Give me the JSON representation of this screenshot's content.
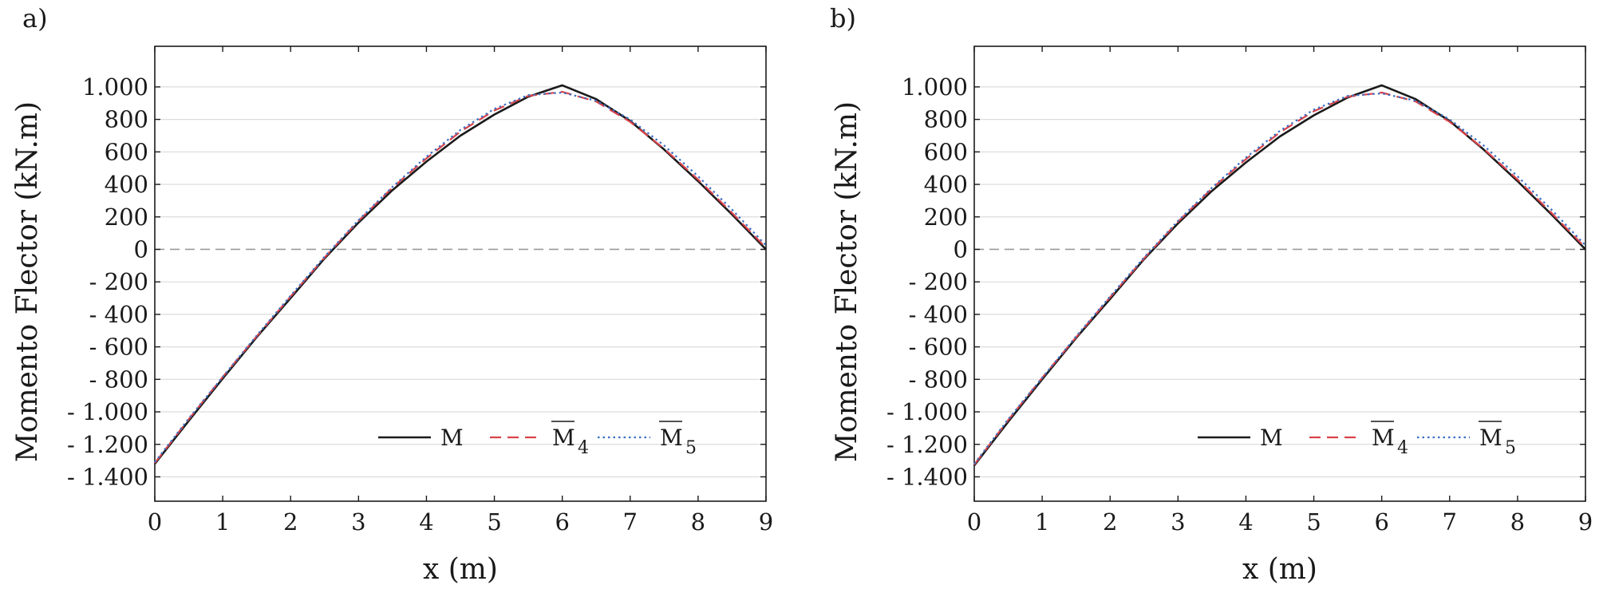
{
  "chart_data": [
    {
      "type": "line",
      "panel_label": "a)",
      "xlabel": "x (m)",
      "ylabel": "Momento Flector (kN.m)",
      "xlim": [
        0,
        9
      ],
      "ylim": [
        -1550,
        1250
      ],
      "x_ticks": [
        0,
        1,
        2,
        3,
        4,
        5,
        6,
        7,
        8,
        9
      ],
      "x_tick_labels": [
        "0",
        "1",
        "2",
        "3",
        "4",
        "5",
        "6",
        "7",
        "8",
        "9"
      ],
      "y_ticks": [
        1000,
        800,
        600,
        400,
        200,
        0,
        -200,
        -400,
        -600,
        -800,
        -1000,
        -1200,
        -1400
      ],
      "y_tick_labels": [
        "1.000",
        "800",
        "600",
        "400",
        "200",
        "0",
        "- 200",
        "- 400",
        "- 600",
        "- 800",
        "- 1.000",
        "- 1.200",
        "- 1.400"
      ],
      "grid": "horizontal",
      "legend_position": "bottom-right",
      "series": [
        {
          "name": "M",
          "subscript": "",
          "color": "#1a1a1a",
          "style": "solid",
          "x": [
            0,
            0.5,
            1,
            1.5,
            2,
            2.5,
            3,
            3.5,
            4,
            4.5,
            5,
            5.5,
            6,
            6.5,
            7,
            7.5,
            8,
            8.5,
            9
          ],
          "y": [
            -1320,
            -1055,
            -795,
            -540,
            -300,
            -55,
            165,
            365,
            540,
            700,
            830,
            940,
            1010,
            925,
            790,
            615,
            420,
            215,
            0
          ]
        },
        {
          "name": "M",
          "subscript": "4",
          "color": "#d9434a",
          "style": "dashed",
          "x": [
            0,
            0.5,
            1,
            1.5,
            2,
            2.5,
            3,
            3.5,
            4,
            4.5,
            5,
            5.5,
            6,
            6.5,
            7,
            7.5,
            8,
            8.5,
            9
          ],
          "y": [
            -1315,
            -1045,
            -785,
            -535,
            -290,
            -50,
            175,
            380,
            560,
            725,
            855,
            945,
            970,
            910,
            785,
            620,
            430,
            225,
            10
          ]
        },
        {
          "name": "M",
          "subscript": "5",
          "color": "#3b6fc4",
          "style": "dotted",
          "x": [
            0,
            0.5,
            1,
            1.5,
            2,
            2.5,
            3,
            3.5,
            4,
            4.5,
            5,
            5.5,
            6,
            6.5,
            7,
            7.5,
            8,
            8.5,
            9
          ],
          "y": [
            -1310,
            -1040,
            -785,
            -530,
            -285,
            -45,
            180,
            385,
            570,
            735,
            865,
            950,
            965,
            915,
            800,
            640,
            450,
            245,
            25
          ]
        }
      ]
    },
    {
      "type": "line",
      "panel_label": "b)",
      "xlabel": "x (m)",
      "ylabel": "Momento Flector (kN.m)",
      "xlim": [
        0,
        9
      ],
      "ylim": [
        -1550,
        1250
      ],
      "x_ticks": [
        0,
        1,
        2,
        3,
        4,
        5,
        6,
        7,
        8,
        9
      ],
      "x_tick_labels": [
        "0",
        "1",
        "2",
        "3",
        "4",
        "5",
        "6",
        "7",
        "8",
        "9"
      ],
      "y_ticks": [
        1000,
        800,
        600,
        400,
        200,
        0,
        -200,
        -400,
        -600,
        -800,
        -1000,
        -1200,
        -1400
      ],
      "y_tick_labels": [
        "1.000",
        "800",
        "600",
        "400",
        "200",
        "0",
        "- 200",
        "- 400",
        "- 600",
        "- 800",
        "- 1.000",
        "- 1.200",
        "- 1.400"
      ],
      "grid": "horizontal",
      "legend_position": "bottom-right",
      "series": [
        {
          "name": "M",
          "subscript": "",
          "color": "#1a1a1a",
          "style": "solid",
          "x": [
            0,
            0.5,
            1,
            1.5,
            2,
            2.5,
            3,
            3.5,
            4,
            4.5,
            5,
            5.5,
            6,
            6.5,
            7,
            7.5,
            8,
            8.5,
            9
          ],
          "y": [
            -1330,
            -1060,
            -800,
            -545,
            -305,
            -60,
            160,
            360,
            535,
            695,
            825,
            935,
            1010,
            925,
            790,
            615,
            420,
            215,
            0
          ]
        },
        {
          "name": "M",
          "subscript": "4",
          "color": "#d9434a",
          "style": "dashed",
          "x": [
            0,
            0.5,
            1,
            1.5,
            2,
            2.5,
            3,
            3.5,
            4,
            4.5,
            5,
            5.5,
            6,
            6.5,
            7,
            7.5,
            8,
            8.5,
            9
          ],
          "y": [
            -1325,
            -1050,
            -790,
            -540,
            -295,
            -55,
            170,
            375,
            555,
            720,
            850,
            940,
            965,
            910,
            785,
            620,
            430,
            225,
            10
          ]
        },
        {
          "name": "M",
          "subscript": "5",
          "color": "#3b6fc4",
          "style": "dotted",
          "x": [
            0,
            0.5,
            1,
            1.5,
            2,
            2.5,
            3,
            3.5,
            4,
            4.5,
            5,
            5.5,
            6,
            6.5,
            7,
            7.5,
            8,
            8.5,
            9
          ],
          "y": [
            -1320,
            -1045,
            -790,
            -535,
            -290,
            -50,
            175,
            380,
            565,
            730,
            860,
            945,
            960,
            915,
            800,
            640,
            450,
            245,
            25
          ]
        }
      ]
    }
  ]
}
